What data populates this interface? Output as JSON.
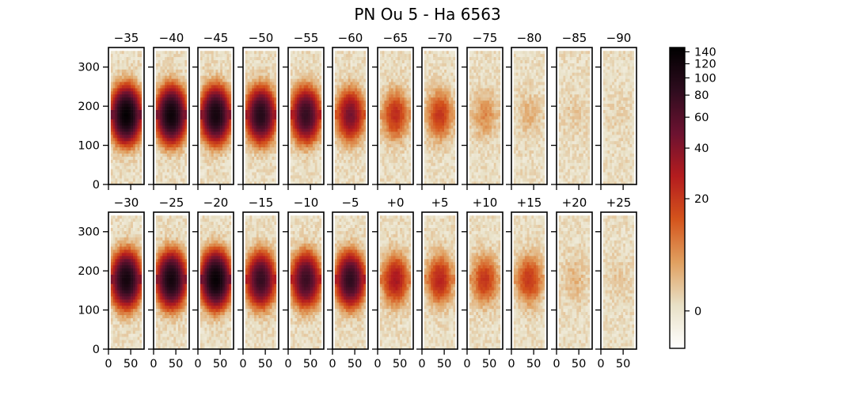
{
  "chart_data": {
    "type": "heatmap",
    "title": "PN Ou 5 - Ha 6563",
    "xlabel": "",
    "ylabel": "",
    "panel_rows": [
      [
        "−35",
        "−40",
        "−45",
        "−50",
        "−55",
        "−60",
        "−65",
        "−70",
        "−75",
        "−80",
        "−85",
        "−90"
      ],
      [
        "−30",
        "−25",
        "−20",
        "−15",
        "−10",
        "−5",
        "+0",
        "+5",
        "+10",
        "+15",
        "+20",
        "+25"
      ]
    ],
    "velocities": [
      [
        -35,
        -40,
        -45,
        -50,
        -55,
        -60,
        -65,
        -70,
        -75,
        -80,
        -85,
        -90
      ],
      [
        -30,
        -25,
        -20,
        -15,
        -10,
        -5,
        0,
        5,
        10,
        15,
        20,
        25
      ]
    ],
    "peak_intensity": [
      [
        140,
        125,
        115,
        95,
        80,
        45,
        22,
        20,
        8,
        4,
        2,
        1
      ],
      [
        115,
        115,
        135,
        80,
        75,
        85,
        30,
        25,
        20,
        20,
        4,
        2
      ]
    ],
    "xlim": [
      0,
      80
    ],
    "ylim": [
      0,
      350
    ],
    "x_tick_values": [
      0,
      50
    ],
    "x_tick_labels": [
      "0",
      "50"
    ],
    "y_tick_values": [
      0,
      100,
      200,
      300
    ],
    "y_tick_labels": [
      "0",
      "100",
      "200",
      "300"
    ],
    "colorbar": {
      "range": [
        -5,
        148
      ],
      "ticks": [
        0,
        20,
        40,
        60,
        80,
        100,
        120,
        140
      ],
      "tick_labels": [
        "0",
        "20",
        "40",
        "60",
        "80",
        "100",
        "120",
        "140"
      ],
      "scale": "asinh",
      "colors": [
        "#ffffff",
        "#e8e0c6",
        "#e0a060",
        "#d4541c",
        "#b41c1e",
        "#6c1230",
        "#2e0c1e",
        "#000000"
      ]
    },
    "grid": false
  }
}
